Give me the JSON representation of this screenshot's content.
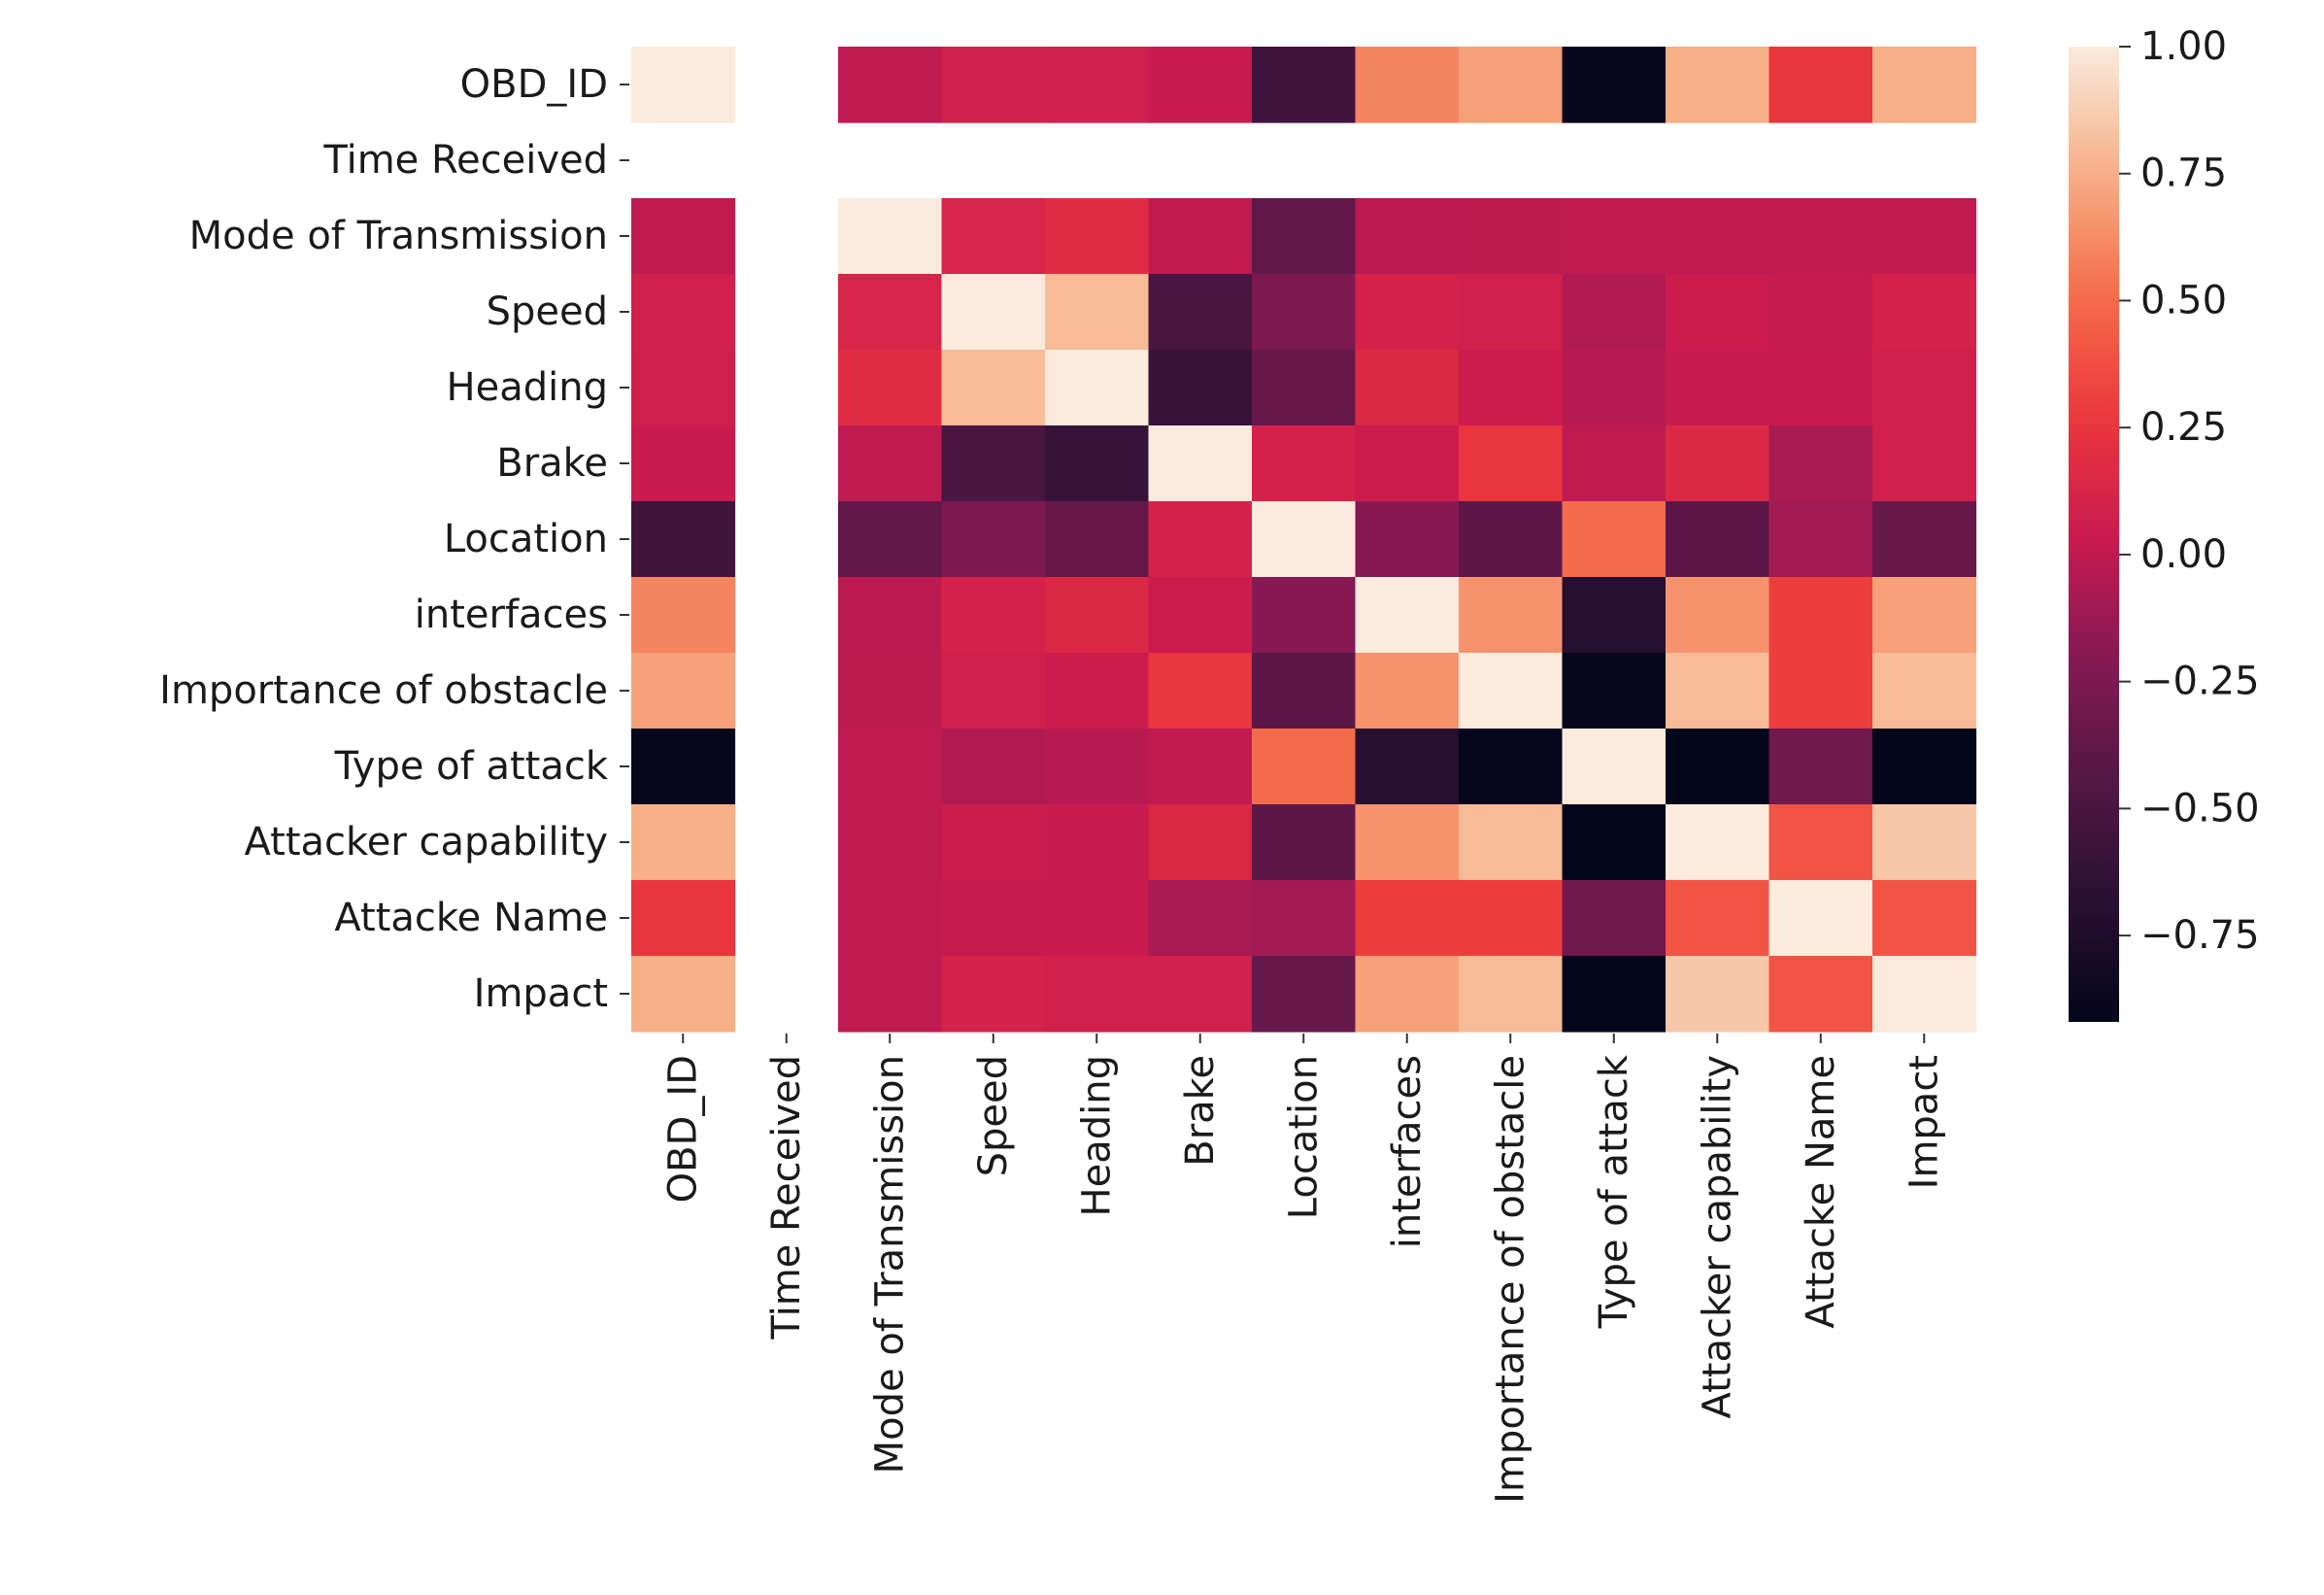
{
  "chart_data": {
    "type": "heatmap",
    "title": "",
    "xlabel": "",
    "ylabel": "",
    "labels": [
      "OBD_ID",
      "Time Received",
      "Mode of Transmission",
      "Speed",
      "Heading",
      "Brake",
      "Location",
      "interfaces",
      "Importance of obstacle",
      "Type of attack",
      "Attacker capability",
      "Attacke Name",
      "Impact"
    ],
    "matrix": [
      [
        1.0,
        null,
        0.0,
        0.08,
        0.07,
        0.03,
        -0.55,
        0.6,
        0.7,
        -0.9,
        0.75,
        0.25,
        0.75
      ],
      [
        null,
        null,
        null,
        null,
        null,
        null,
        null,
        null,
        null,
        null,
        null,
        null,
        null
      ],
      [
        0.0,
        null,
        1.0,
        0.12,
        0.18,
        0.0,
        -0.38,
        -0.02,
        -0.01,
        0.0,
        0.0,
        0.0,
        0.0
      ],
      [
        0.08,
        null,
        0.12,
        1.0,
        0.8,
        -0.5,
        -0.25,
        0.1,
        0.08,
        -0.05,
        0.05,
        0.02,
        0.1
      ],
      [
        0.07,
        null,
        0.18,
        0.8,
        1.0,
        -0.6,
        -0.35,
        0.15,
        0.05,
        -0.03,
        0.03,
        0.03,
        0.08
      ],
      [
        0.03,
        null,
        0.0,
        -0.5,
        -0.6,
        1.0,
        0.1,
        0.05,
        0.25,
        0.0,
        0.15,
        -0.08,
        0.08
      ],
      [
        -0.55,
        null,
        -0.38,
        -0.25,
        -0.35,
        0.1,
        1.0,
        -0.2,
        -0.4,
        0.5,
        -0.4,
        -0.1,
        -0.35
      ],
      [
        0.6,
        null,
        -0.02,
        0.1,
        0.15,
        0.05,
        -0.2,
        1.0,
        0.65,
        -0.7,
        0.65,
        0.3,
        0.7
      ],
      [
        0.7,
        null,
        -0.01,
        0.08,
        0.05,
        0.25,
        -0.4,
        0.65,
        1.0,
        -0.9,
        0.8,
        0.3,
        0.8
      ],
      [
        -0.9,
        null,
        0.0,
        -0.05,
        -0.03,
        0.0,
        0.5,
        -0.7,
        -0.9,
        1.0,
        -0.95,
        -0.3,
        -0.95
      ],
      [
        0.75,
        null,
        0.0,
        0.05,
        0.03,
        0.15,
        -0.4,
        0.65,
        0.8,
        -0.95,
        1.0,
        0.4,
        0.85
      ],
      [
        0.25,
        null,
        0.0,
        0.02,
        0.03,
        -0.08,
        -0.1,
        0.3,
        0.3,
        -0.3,
        0.4,
        1.0,
        0.4
      ],
      [
        0.75,
        null,
        0.0,
        0.1,
        0.08,
        0.08,
        -0.35,
        0.7,
        0.8,
        -0.95,
        0.85,
        0.4,
        1.0
      ]
    ],
    "colorbar": {
      "range": [
        -0.92,
        1.0
      ],
      "ticks": [
        1.0,
        0.75,
        0.5,
        0.25,
        0.0,
        -0.25,
        -0.5,
        -0.75
      ],
      "tick_labels": [
        "1.00",
        "0.75",
        "0.50",
        "0.25",
        "0.00",
        "−0.25",
        "−0.50",
        "−0.75"
      ],
      "colormap": "rocket"
    },
    "grid": false
  }
}
